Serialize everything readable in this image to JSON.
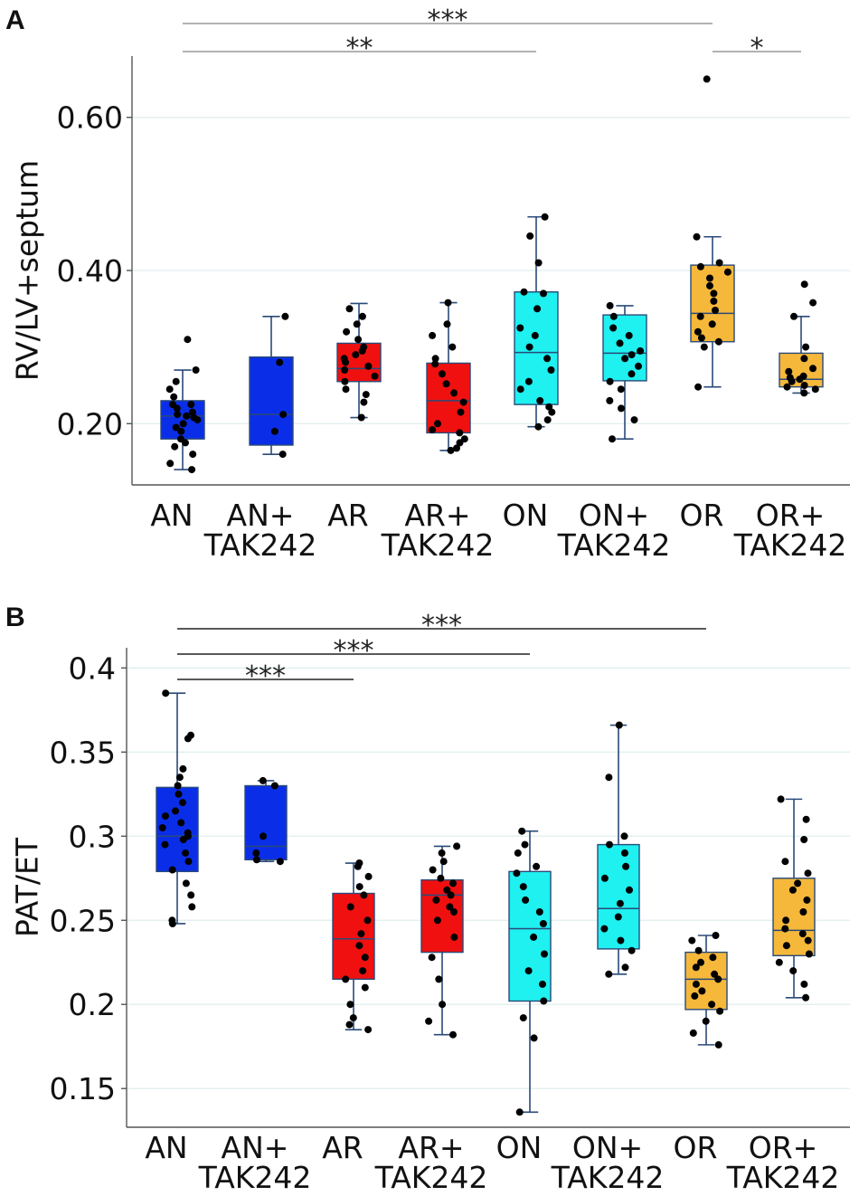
{
  "chart_data": [
    {
      "type": "box",
      "panel": "A",
      "ylabel": "RV/LV+septum",
      "ylim": [
        0.12,
        0.68
      ],
      "yticks": [
        0.2,
        0.4,
        0.6
      ],
      "ytick_labels": [
        "0.20",
        "0.40",
        "0.60"
      ],
      "categories": [
        {
          "line1": "AN",
          "line2": ""
        },
        {
          "line1": "AN+",
          "line2": "TAK242"
        },
        {
          "line1": "AR",
          "line2": ""
        },
        {
          "line1": "AR+",
          "line2": "TAK242"
        },
        {
          "line1": "ON",
          "line2": ""
        },
        {
          "line1": "ON+",
          "line2": "TAK242"
        },
        {
          "line1": "OR",
          "line2": ""
        },
        {
          "line1": "OR+",
          "line2": "TAK242"
        }
      ],
      "colors": [
        "#0a2ee8",
        "#0a2ee8",
        "#f01010",
        "#f01010",
        "#1ff0f0",
        "#1ff0f0",
        "#f5b83a",
        "#f5b83a"
      ],
      "boxes": [
        {
          "min": 0.14,
          "q1": 0.18,
          "median": 0.21,
          "q3": 0.23,
          "max": 0.27
        },
        {
          "min": 0.16,
          "q1": 0.172,
          "median": 0.212,
          "q3": 0.287,
          "max": 0.34
        },
        {
          "min": 0.208,
          "q1": 0.255,
          "median": 0.272,
          "q3": 0.305,
          "max": 0.357
        },
        {
          "min": 0.165,
          "q1": 0.188,
          "median": 0.23,
          "q3": 0.279,
          "max": 0.358
        },
        {
          "min": 0.196,
          "q1": 0.225,
          "median": 0.293,
          "q3": 0.372,
          "max": 0.47
        },
        {
          "min": 0.18,
          "q1": 0.256,
          "median": 0.292,
          "q3": 0.342,
          "max": 0.354
        },
        {
          "min": 0.248,
          "q1": 0.307,
          "median": 0.344,
          "q3": 0.407,
          "max": 0.444
        },
        {
          "min": 0.24,
          "q1": 0.248,
          "median": 0.258,
          "q3": 0.292,
          "max": 0.34
        }
      ],
      "points": [
        [
          0.31,
          0.27,
          0.255,
          0.245,
          0.235,
          0.225,
          0.225,
          0.22,
          0.215,
          0.212,
          0.21,
          0.208,
          0.205,
          0.2,
          0.195,
          0.19,
          0.18,
          0.175,
          0.17,
          0.16,
          0.148,
          0.14
        ],
        [
          0.34,
          0.28,
          0.212,
          0.19,
          0.16
        ],
        [
          0.35,
          0.34,
          0.33,
          0.32,
          0.31,
          0.3,
          0.295,
          0.29,
          0.285,
          0.28,
          0.275,
          0.27,
          0.262,
          0.255,
          0.245,
          0.238,
          0.228,
          0.208
        ],
        [
          0.358,
          0.33,
          0.315,
          0.3,
          0.285,
          0.278,
          0.265,
          0.252,
          0.24,
          0.228,
          0.215,
          0.2,
          0.192,
          0.188,
          0.18,
          0.175,
          0.168,
          0.165
        ],
        [
          0.47,
          0.445,
          0.41,
          0.372,
          0.37,
          0.35,
          0.325,
          0.315,
          0.3,
          0.285,
          0.27,
          0.255,
          0.245,
          0.23,
          0.222,
          0.215,
          0.205,
          0.196
        ],
        [
          0.354,
          0.34,
          0.325,
          0.315,
          0.305,
          0.295,
          0.29,
          0.285,
          0.275,
          0.265,
          0.255,
          0.245,
          0.23,
          0.22,
          0.205,
          0.18
        ],
        [
          0.65,
          0.444,
          0.41,
          0.405,
          0.398,
          0.39,
          0.38,
          0.37,
          0.36,
          0.348,
          0.34,
          0.33,
          0.32,
          0.312,
          0.307,
          0.3,
          0.248
        ],
        [
          0.382,
          0.358,
          0.34,
          0.3,
          0.285,
          0.272,
          0.268,
          0.262,
          0.26,
          0.258,
          0.255,
          0.25,
          0.248,
          0.245,
          0.24
        ]
      ],
      "significance": [
        {
          "from": 0,
          "to": 6,
          "label": "***",
          "level": 0
        },
        {
          "from": 0,
          "to": 4,
          "label": "**",
          "level": 1
        },
        {
          "from": 6,
          "to": 7,
          "label": "*",
          "level": 1
        }
      ]
    },
    {
      "type": "box",
      "panel": "B",
      "ylabel": "PAT/ET",
      "ylim": [
        0.127,
        0.412
      ],
      "yticks": [
        0.15,
        0.2,
        0.25,
        0.3,
        0.35,
        0.4
      ],
      "ytick_labels": [
        "0.15",
        "0.2",
        "0.25",
        "0.3",
        "0.35",
        "0.4"
      ],
      "categories": [
        {
          "line1": "AN",
          "line2": ""
        },
        {
          "line1": "AN+",
          "line2": "TAK242"
        },
        {
          "line1": "AR",
          "line2": ""
        },
        {
          "line1": "AR+",
          "line2": "TAK242"
        },
        {
          "line1": "ON",
          "line2": ""
        },
        {
          "line1": "ON+",
          "line2": "TAK242"
        },
        {
          "line1": "OR",
          "line2": ""
        },
        {
          "line1": "OR+",
          "line2": "TAK242"
        }
      ],
      "colors": [
        "#0a2ee8",
        "#0a2ee8",
        "#f01010",
        "#f01010",
        "#1ff0f0",
        "#1ff0f0",
        "#f5b83a",
        "#f5b83a"
      ],
      "boxes": [
        {
          "min": 0.248,
          "q1": 0.279,
          "median": 0.3,
          "q3": 0.329,
          "max": 0.385
        },
        {
          "min": 0.285,
          "q1": 0.286,
          "median": 0.294,
          "q3": 0.33,
          "max": 0.333
        },
        {
          "min": 0.185,
          "q1": 0.215,
          "median": 0.239,
          "q3": 0.266,
          "max": 0.284
        },
        {
          "min": 0.182,
          "q1": 0.231,
          "median": 0.265,
          "q3": 0.274,
          "max": 0.294
        },
        {
          "min": 0.136,
          "q1": 0.202,
          "median": 0.245,
          "q3": 0.279,
          "max": 0.303
        },
        {
          "min": 0.218,
          "q1": 0.233,
          "median": 0.257,
          "q3": 0.295,
          "max": 0.366
        },
        {
          "min": 0.176,
          "q1": 0.197,
          "median": 0.215,
          "q3": 0.231,
          "max": 0.241
        },
        {
          "min": 0.204,
          "q1": 0.229,
          "median": 0.244,
          "q3": 0.275,
          "max": 0.322
        }
      ],
      "points": [
        [
          0.385,
          0.36,
          0.358,
          0.34,
          0.335,
          0.33,
          0.325,
          0.32,
          0.315,
          0.312,
          0.308,
          0.305,
          0.302,
          0.3,
          0.298,
          0.295,
          0.29,
          0.285,
          0.28,
          0.272,
          0.265,
          0.258,
          0.25,
          0.248
        ],
        [
          0.333,
          0.33,
          0.3,
          0.29,
          0.286,
          0.285
        ],
        [
          0.284,
          0.282,
          0.276,
          0.27,
          0.265,
          0.258,
          0.25,
          0.242,
          0.235,
          0.228,
          0.22,
          0.215,
          0.21,
          0.2,
          0.192,
          0.188,
          0.185
        ],
        [
          0.294,
          0.29,
          0.285,
          0.28,
          0.275,
          0.272,
          0.268,
          0.265,
          0.262,
          0.258,
          0.255,
          0.25,
          0.24,
          0.228,
          0.215,
          0.2,
          0.19,
          0.182
        ],
        [
          0.303,
          0.295,
          0.29,
          0.282,
          0.278,
          0.27,
          0.262,
          0.255,
          0.248,
          0.24,
          0.23,
          0.22,
          0.212,
          0.202,
          0.192,
          0.18,
          0.136
        ],
        [
          0.366,
          0.335,
          0.3,
          0.295,
          0.29,
          0.282,
          0.275,
          0.268,
          0.26,
          0.252,
          0.245,
          0.238,
          0.232,
          0.222,
          0.218
        ],
        [
          0.241,
          0.238,
          0.232,
          0.228,
          0.225,
          0.222,
          0.218,
          0.215,
          0.212,
          0.208,
          0.205,
          0.2,
          0.196,
          0.19,
          0.183,
          0.176
        ],
        [
          0.322,
          0.31,
          0.298,
          0.285,
          0.278,
          0.272,
          0.268,
          0.262,
          0.255,
          0.25,
          0.245,
          0.242,
          0.238,
          0.235,
          0.23,
          0.225,
          0.22,
          0.212,
          0.204
        ]
      ],
      "significance": [
        {
          "from": 0,
          "to": 6,
          "label": "***",
          "level": 0
        },
        {
          "from": 0,
          "to": 4,
          "label": "***",
          "level": 1
        },
        {
          "from": 0,
          "to": 2,
          "label": "***",
          "level": 2
        }
      ]
    }
  ]
}
